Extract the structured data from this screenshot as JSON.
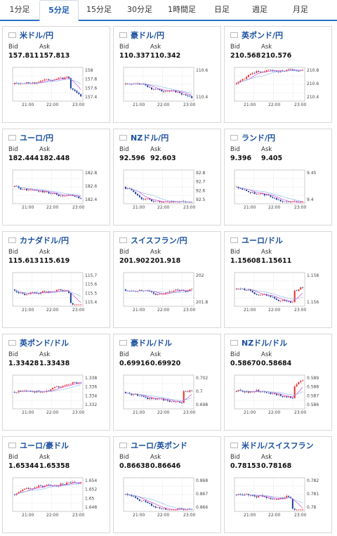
{
  "tabs": [
    {
      "label": "1分足",
      "active": false
    },
    {
      "label": "5分足",
      "active": true
    },
    {
      "label": "15分足",
      "active": false
    },
    {
      "label": "30分足",
      "active": false
    },
    {
      "label": "1時間足",
      "active": false
    },
    {
      "label": "日足",
      "active": false
    },
    {
      "label": "週足",
      "active": false
    },
    {
      "label": "月足",
      "active": false
    }
  ],
  "labels": {
    "bid": "Bid",
    "ask": "Ask"
  },
  "x_ticks": [
    "21:00",
    "22:00",
    "23:00"
  ],
  "colors": {
    "up": "#e8312f",
    "down": "#1c3f9c",
    "ma": "#d04ad8",
    "accent": "#2a6ec4"
  },
  "cards": [
    {
      "pair": "米ドル/円",
      "flag": "us-flag",
      "bid": "157.811",
      "ask": "157.813",
      "yticks": [
        "158",
        "157.8",
        "157.6",
        "157.4"
      ],
      "seed": 11,
      "shape": "dip-late"
    },
    {
      "pair": "豪ドル/円",
      "flag": "au-flag",
      "bid": "110.337",
      "ask": "110.342",
      "yticks": [
        "110.6",
        "110.4"
      ],
      "seed": 23,
      "shape": "fall"
    },
    {
      "pair": "英ポンド/円",
      "flag": "uk-flag",
      "bid": "210.568",
      "ask": "210.576",
      "yticks": [
        "210.8",
        "210.6",
        "210.4"
      ],
      "seed": 37,
      "shape": "rise"
    },
    {
      "pair": "ユーロ/円",
      "flag": "eu-flag",
      "bid": "182.444",
      "ask": "182.448",
      "yticks": [
        "182.8",
        "182.6",
        "182.4"
      ],
      "seed": 41,
      "shape": "fall"
    },
    {
      "pair": "NZドル/円",
      "flag": "nz-flag",
      "bid": "92.596",
      "ask": "92.603",
      "yticks": [
        "92.8",
        "92.7",
        "92.6",
        "92.5"
      ],
      "seed": 53,
      "shape": "fall"
    },
    {
      "pair": "ランド/円",
      "flag": "za-flag",
      "bid": "9.396",
      "ask": "9.405",
      "yticks": [
        "9.45",
        "9.4"
      ],
      "seed": 67,
      "shape": "fall"
    },
    {
      "pair": "カナダドル/円",
      "flag": "ca-flag",
      "bid": "115.613",
      "ask": "115.619",
      "yticks": [
        "115.7",
        "115.6",
        "115.5",
        "115.4"
      ],
      "seed": 71,
      "shape": "dip-late"
    },
    {
      "pair": "スイスフラン/円",
      "flag": "ch-flag",
      "bid": "201.902",
      "ask": "201.918",
      "yticks": [
        "202",
        "201.8"
      ],
      "seed": 83,
      "shape": "flat"
    },
    {
      "pair": "ユーロ/ドル",
      "flag": "eu-flag",
      "bid": "1.15608",
      "ask": "1.15611",
      "yticks": [
        "1.158",
        "1.156"
      ],
      "seed": 97,
      "shape": "spike"
    },
    {
      "pair": "英ポンド/ドル",
      "flag": "uk-flag",
      "bid": "1.33428",
      "ask": "1.33438",
      "yticks": [
        "1.338",
        "1.336",
        "1.334",
        "1.332"
      ],
      "seed": 101,
      "shape": "rise"
    },
    {
      "pair": "豪ドル/ドル",
      "flag": "au-flag",
      "bid": "0.69916",
      "ask": "0.69920",
      "yticks": [
        "0.702",
        "0.7",
        "0.698"
      ],
      "seed": 113,
      "shape": "spike"
    },
    {
      "pair": "NZドル/ドル",
      "flag": "nz-flag",
      "bid": "0.58670",
      "ask": "0.58684",
      "yticks": [
        "0.589",
        "0.588",
        "0.587",
        "0.586"
      ],
      "seed": 127,
      "shape": "spike"
    },
    {
      "pair": "ユーロ/豪ドル",
      "flag": "eu-flag",
      "bid": "1.65344",
      "ask": "1.65358",
      "yticks": [
        "1.654",
        "1.652",
        "1.65",
        "1.648"
      ],
      "seed": 131,
      "shape": "rise"
    },
    {
      "pair": "ユーロ/英ポンド",
      "flag": "eu-flag",
      "bid": "0.86638",
      "ask": "0.86646",
      "yticks": [
        "0.868",
        "0.867",
        "0.866"
      ],
      "seed": 139,
      "shape": "fall"
    },
    {
      "pair": "米ドル/スイスフラン",
      "flag": "us-flag",
      "bid": "0.78153",
      "ask": "0.78168",
      "yticks": [
        "0.782",
        "0.781",
        "0.78"
      ],
      "seed": 149,
      "shape": "dip-late"
    }
  ]
}
